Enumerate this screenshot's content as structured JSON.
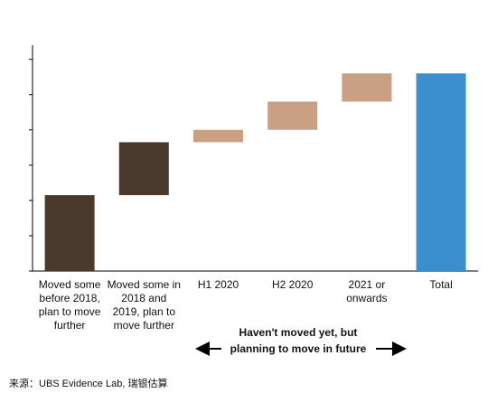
{
  "chart_data": {
    "type": "waterfall",
    "categories": [
      "Moved some before 2018, plan to move further",
      "Moved some in 2018 and 2019, plan to move further",
      "H1 2020",
      "H2 2020",
      "2021 or onwards",
      "Total"
    ],
    "values": [
      21.5,
      15,
      3.5,
      8,
      8,
      56
    ],
    "is_total": [
      false,
      false,
      false,
      false,
      false,
      true
    ],
    "colors": [
      "#4a3a2e",
      "#4a3a2e",
      "#c9a084",
      "#c9a084",
      "#c9a084",
      "#3a8fcc"
    ],
    "ylim": [
      0,
      64
    ],
    "yticks": [
      0,
      10,
      20,
      30,
      40,
      50,
      60
    ],
    "annotation": "Haven't moved yet, but planning to move in future"
  },
  "source": "来源：UBS Evidence Lab, 瑞银估算"
}
